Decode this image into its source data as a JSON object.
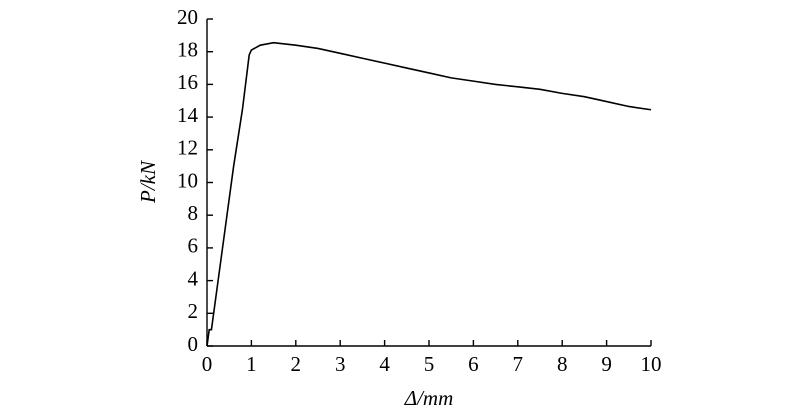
{
  "chart_data": {
    "type": "line",
    "x_label": "Δ/mm",
    "y_label": "P/kN",
    "x": [
      0,
      0.05,
      0.1,
      0.2,
      0.4,
      0.6,
      0.8,
      0.95,
      1.0,
      1.2,
      1.5,
      2,
      2.5,
      3,
      3.5,
      4,
      4.5,
      5,
      5.5,
      6,
      6.5,
      7,
      7.5,
      8,
      8.5,
      9,
      9.5,
      10
    ],
    "series": [
      {
        "color": "#000000",
        "values": [
          0,
          1,
          1,
          3,
          7,
          11,
          14.5,
          17.8,
          18.1,
          18.4,
          18.55,
          18.4,
          18.2,
          17.9,
          17.6,
          17.3,
          17.0,
          16.7,
          16.4,
          16.2,
          16.0,
          15.85,
          15.7,
          15.45,
          15.25,
          14.95,
          14.65,
          14.45
        ]
      }
    ],
    "xlim": [
      0,
      10
    ],
    "ylim": [
      0,
      20
    ],
    "xticks": [
      0,
      1,
      2,
      3,
      4,
      5,
      6,
      7,
      8,
      9,
      10
    ],
    "yticks": [
      0,
      2,
      4,
      6,
      8,
      10,
      12,
      14,
      16,
      18,
      20
    ]
  }
}
